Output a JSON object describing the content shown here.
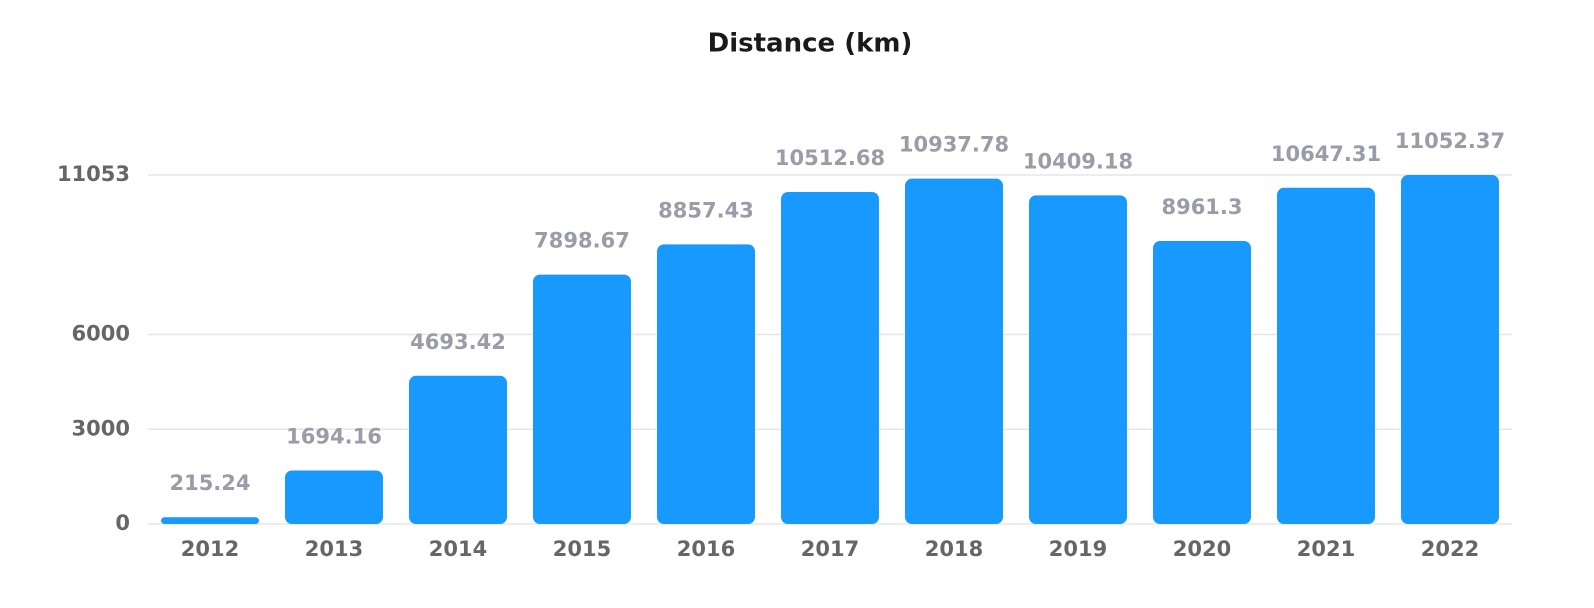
{
  "chart_data": {
    "type": "bar",
    "title": "Distance (km)",
    "categories": [
      "2012",
      "2013",
      "2014",
      "2015",
      "2016",
      "2017",
      "2018",
      "2019",
      "2020",
      "2021",
      "2022"
    ],
    "values": [
      215.24,
      1694.16,
      4693.42,
      7898.67,
      8857.43,
      10512.68,
      10937.78,
      10409.18,
      8961.3,
      10647.31,
      11052.37
    ],
    "color": "#1799fe",
    "ylim": [
      0,
      11053
    ],
    "yticks": [
      0,
      3000,
      6000,
      11053
    ],
    "grid": true
  }
}
